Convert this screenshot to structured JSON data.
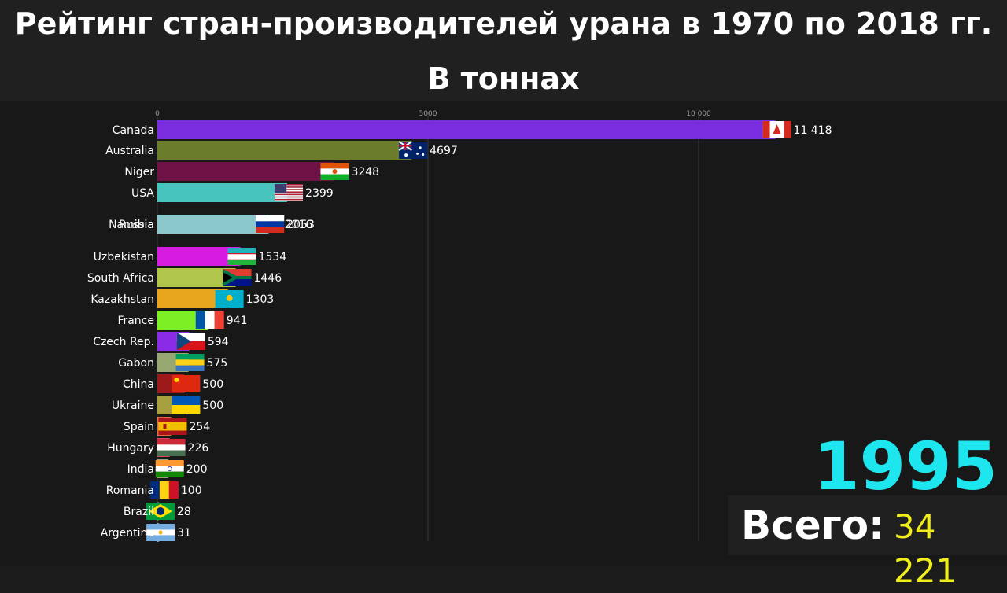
{
  "title": "Рейтинг стран-производителей урана в 1970 по 2018 гг.",
  "subtitle": "В тоннах",
  "year": "1995",
  "total_label": "Всего:",
  "total_value": "34 221",
  "chart_data": {
    "type": "bar",
    "orientation": "horizontal",
    "xlim": [
      0,
      13000
    ],
    "x_ticks": [
      0,
      5000,
      10000
    ],
    "x_tick_labels": [
      "0",
      "5000",
      "10 000"
    ],
    "grid": true,
    "bars": [
      {
        "category": "Canada",
        "value": 11418,
        "label": "11 418",
        "color": "#7b2ee0"
      },
      {
        "category": "Australia",
        "value": 4697,
        "label": "4697",
        "color": "#6b7d2a"
      },
      {
        "category": "Niger",
        "value": 3248,
        "label": "3248",
        "color": "#6e1246"
      },
      {
        "category": "USA",
        "value": 2399,
        "label": "2399",
        "color": "#47c4bd"
      },
      {
        "category": "Namibia",
        "value": 2016,
        "label": "2016",
        "color": "#7fc2c6"
      },
      {
        "category": "Russia",
        "value": 2053,
        "label": "2053",
        "color": "#8ac8cc"
      },
      {
        "category": "Uzbekistan",
        "value": 1534,
        "label": "1534",
        "color": "#d61be0"
      },
      {
        "category": "South Africa",
        "value": 1446,
        "label": "1446",
        "color": "#b0c64a"
      },
      {
        "category": "Kazakhstan",
        "value": 1303,
        "label": "1303",
        "color": "#e8a61e"
      },
      {
        "category": "France",
        "value": 941,
        "label": "941",
        "color": "#7cf024"
      },
      {
        "category": "Czech Rep.",
        "value": 594,
        "label": "594",
        "color": "#8a2be8"
      },
      {
        "category": "Gabon",
        "value": 575,
        "label": "575",
        "color": "#98a872"
      },
      {
        "category": "China",
        "value": 500,
        "label": "500",
        "color": "#9e1a1a"
      },
      {
        "category": "Ukraine",
        "value": 500,
        "label": "500",
        "color": "#a8a040"
      },
      {
        "category": "Spain",
        "value": 254,
        "label": "254",
        "color": "#e0703a"
      },
      {
        "category": "Hungary",
        "value": 226,
        "label": "226",
        "color": "#d44a5a"
      },
      {
        "category": "India",
        "value": 200,
        "label": "200",
        "color": "#a89c80"
      },
      {
        "category": "Romania",
        "value": 100,
        "label": "100",
        "color": "#2a3a9e"
      },
      {
        "category": "Brazil",
        "value": 28,
        "label": "28",
        "color": "#1e8a3a"
      },
      {
        "category": "Argentina",
        "value": 31,
        "label": "31",
        "color": "#6aa0d8"
      }
    ],
    "flags": [
      "canada-flag",
      "australia-flag",
      "niger-flag",
      "usa-flag",
      "namibia-flag",
      "russia-flag",
      "uzbekistan-flag",
      "south-africa-flag",
      "kazakhstan-flag",
      "france-flag",
      "czech-flag",
      "gabon-flag",
      "china-flag",
      "ukraine-flag",
      "spain-flag",
      "hungary-flag",
      "india-flag",
      "romania-flag",
      "brazil-flag",
      "argentina-flag"
    ]
  }
}
